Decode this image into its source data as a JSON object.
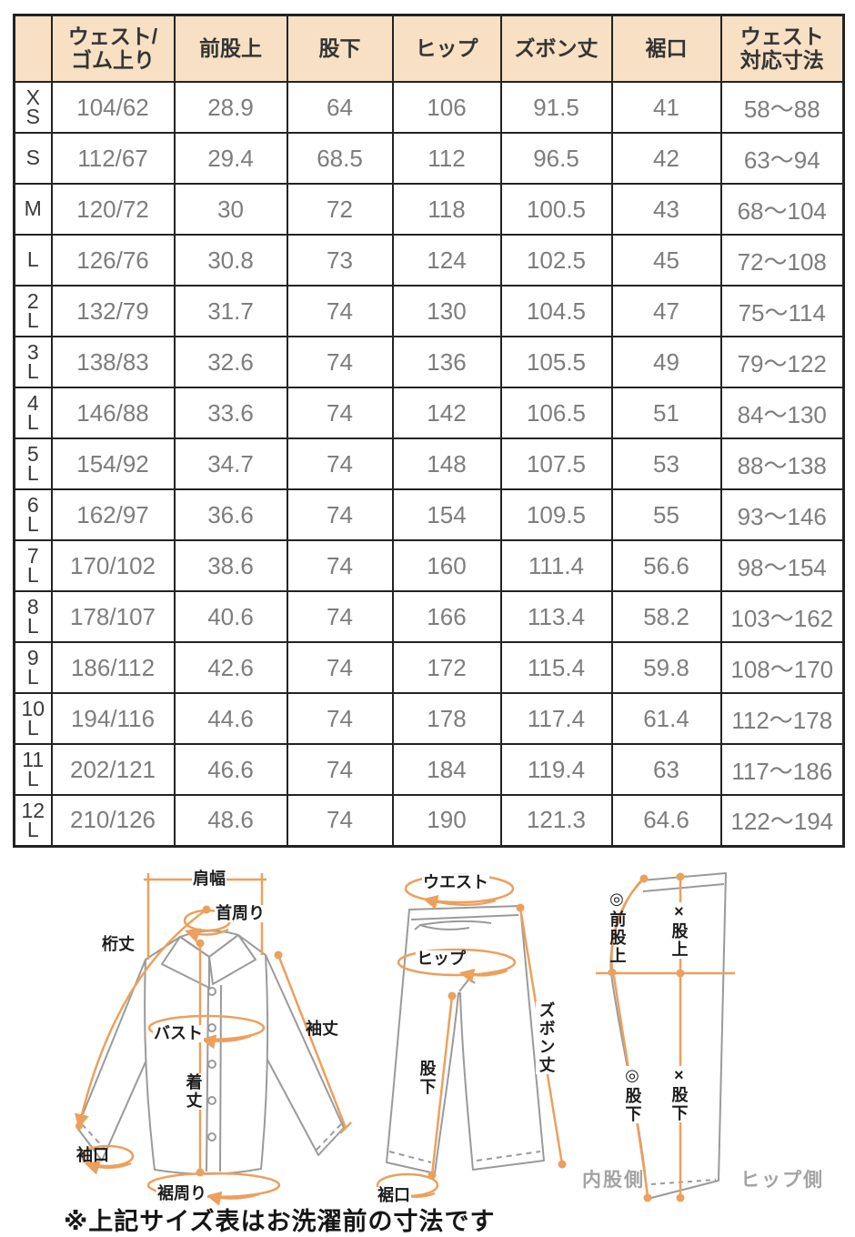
{
  "colors": {
    "header_bg": "#f7e0c3",
    "table_border": "#232323",
    "data_text": "#7d7d7d",
    "row_label_text": "#3a3a3a",
    "measure_orange": "#eca05c",
    "garment_outline": "#9a9a9a",
    "side_label_gray": "#a3a3a3"
  },
  "table": {
    "corner": "",
    "headers": [
      "ウェスト/\nゴム上り",
      "前股上",
      "股下",
      "ヒップ",
      "ズボン丈",
      "裾口",
      "ウェスト\n対応寸法"
    ],
    "rows": [
      {
        "size": "X\nS",
        "values": [
          "104/62",
          "28.9",
          "64",
          "106",
          "91.5",
          "41",
          "58〜88"
        ]
      },
      {
        "size": "S",
        "values": [
          "112/67",
          "29.4",
          "68.5",
          "112",
          "96.5",
          "42",
          "63〜94"
        ]
      },
      {
        "size": "M",
        "values": [
          "120/72",
          "30",
          "72",
          "118",
          "100.5",
          "43",
          "68〜104"
        ]
      },
      {
        "size": "L",
        "values": [
          "126/76",
          "30.8",
          "73",
          "124",
          "102.5",
          "45",
          "72〜108"
        ]
      },
      {
        "size": "2\nL",
        "values": [
          "132/79",
          "31.7",
          "74",
          "130",
          "104.5",
          "47",
          "75〜114"
        ]
      },
      {
        "size": "3\nL",
        "values": [
          "138/83",
          "32.6",
          "74",
          "136",
          "105.5",
          "49",
          "79〜122"
        ]
      },
      {
        "size": "4\nL",
        "values": [
          "146/88",
          "33.6",
          "74",
          "142",
          "106.5",
          "51",
          "84〜130"
        ]
      },
      {
        "size": "5\nL",
        "values": [
          "154/92",
          "34.7",
          "74",
          "148",
          "107.5",
          "53",
          "88〜138"
        ]
      },
      {
        "size": "6\nL",
        "values": [
          "162/97",
          "36.6",
          "74",
          "154",
          "109.5",
          "55",
          "93〜146"
        ]
      },
      {
        "size": "7\nL",
        "values": [
          "170/102",
          "38.6",
          "74",
          "160",
          "111.4",
          "56.6",
          "98〜154"
        ]
      },
      {
        "size": "8\nL",
        "values": [
          "178/107",
          "40.6",
          "74",
          "166",
          "113.4",
          "58.2",
          "103〜162"
        ]
      },
      {
        "size": "9\nL",
        "values": [
          "186/112",
          "42.6",
          "74",
          "172",
          "115.4",
          "59.8",
          "108〜170"
        ]
      },
      {
        "size": "10\nL",
        "values": [
          "194/116",
          "44.6",
          "74",
          "178",
          "117.4",
          "61.4",
          "112〜178"
        ]
      },
      {
        "size": "11\nL",
        "values": [
          "202/121",
          "46.6",
          "74",
          "184",
          "119.4",
          "63",
          "117〜186"
        ]
      },
      {
        "size": "12\nL",
        "values": [
          "210/126",
          "48.6",
          "74",
          "190",
          "121.3",
          "64.6",
          "122〜194"
        ]
      }
    ]
  },
  "diagrams": {
    "shirt": {
      "shoulder": "肩幅",
      "neck": "首周り",
      "sleeve_center": "桁丈",
      "bust": "バスト",
      "body_length": "着丈",
      "sleeve": "袖丈",
      "cuff": "袖口",
      "hem_around": "裾周り"
    },
    "pants_front": {
      "waist": "ウエスト",
      "hip": "ヒップ",
      "pants_length": "ズボン丈",
      "inseam": "股下",
      "hem": "裾口"
    },
    "pants_side": {
      "front_rise": "◎前股上",
      "rise": "×股上",
      "inseam_a": "◎股下",
      "inseam_b": "×股下",
      "inner_side": "内股側",
      "hip_side": "ヒップ側"
    }
  },
  "note": "※上記サイズ表はお洗濯前の寸法です"
}
